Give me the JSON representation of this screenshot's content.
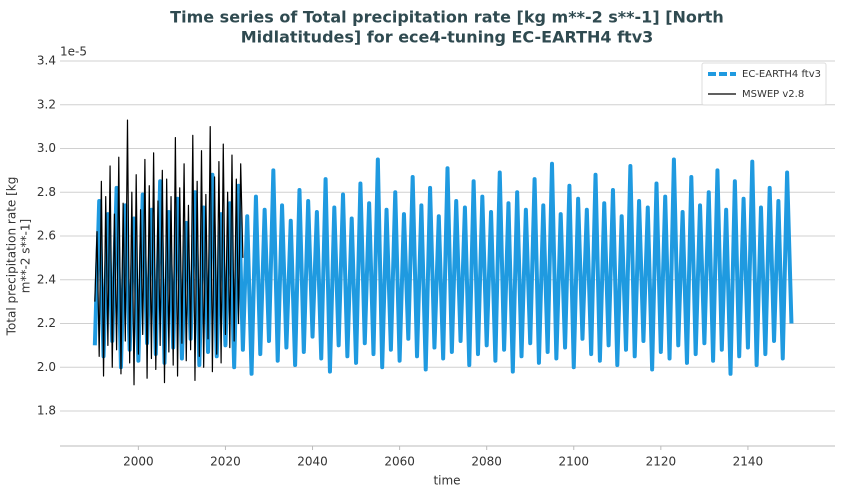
{
  "chart_data": {
    "type": "line",
    "title": [
      "Time series of Total precipitation rate [kg m**-2 s**-1] [North",
      "Midlatitudes] for ece4-tuning EC-EARTH4 ftv3"
    ],
    "xlabel": "time",
    "ylabel": [
      "Total precipitation rate [kg",
      "m**-2 s**-1]"
    ],
    "y_offset_label": "1e-5",
    "xlim": [
      1982,
      2160
    ],
    "xticks": [
      2000,
      2020,
      2040,
      2060,
      2080,
      2100,
      2120,
      2140
    ],
    "ylim": [
      1.64,
      3.4
    ],
    "yticks": [
      1.8,
      {
        "value": 2,
        "label": "2.0"
      },
      2.2,
      2.4,
      2.6,
      2.8,
      {
        "value": 3,
        "label": "3.0"
      },
      3.2,
      3.4
    ],
    "grid": true,
    "legend": "upper right",
    "series": [
      {
        "name": "EC-EARTH4 ftv3",
        "color": "#1f9ae0",
        "style": "dashed",
        "x": [
          1990,
          1991,
          1992,
          1993,
          1994,
          1995,
          1996,
          1997,
          1998,
          1999,
          2000,
          2001,
          2002,
          2003,
          2004,
          2005,
          2006,
          2007,
          2008,
          2009,
          2010,
          2011,
          2012,
          2013,
          2014,
          2015,
          2016,
          2017,
          2018,
          2019,
          2020,
          2021,
          2022,
          2023,
          2024,
          2025,
          2026,
          2027,
          2028,
          2029,
          2030,
          2031,
          2032,
          2033,
          2034,
          2035,
          2036,
          2037,
          2038,
          2039,
          2040,
          2041,
          2042,
          2043,
          2044,
          2045,
          2046,
          2047,
          2048,
          2049,
          2050,
          2051,
          2052,
          2053,
          2054,
          2055,
          2056,
          2057,
          2058,
          2059,
          2060,
          2061,
          2062,
          2063,
          2064,
          2065,
          2066,
          2067,
          2068,
          2069,
          2070,
          2071,
          2072,
          2073,
          2074,
          2075,
          2076,
          2077,
          2078,
          2079,
          2080,
          2081,
          2082,
          2083,
          2084,
          2085,
          2086,
          2087,
          2088,
          2089,
          2090,
          2091,
          2092,
          2093,
          2094,
          2095,
          2096,
          2097,
          2098,
          2099,
          2100,
          2101,
          2102,
          2103,
          2104,
          2105,
          2106,
          2107,
          2108,
          2109,
          2110,
          2111,
          2112,
          2113,
          2114,
          2115,
          2116,
          2117,
          2118,
          2119,
          2120,
          2121,
          2122,
          2123,
          2124,
          2125,
          2126,
          2127,
          2128,
          2129,
          2130,
          2131,
          2132,
          2133,
          2134,
          2135,
          2136,
          2137,
          2138,
          2139,
          2140,
          2141,
          2142,
          2143,
          2144,
          2145,
          2146,
          2147,
          2148,
          2149,
          2150
        ],
        "values": [
          2.1,
          2.76,
          2.05,
          2.7,
          2.12,
          2.82,
          2.0,
          2.74,
          2.08,
          2.68,
          2.03,
          2.79,
          2.11,
          2.72,
          2.06,
          2.85,
          2.02,
          2.71,
          2.09,
          2.77,
          2.04,
          2.66,
          2.13,
          2.8,
          2.01,
          2.73,
          2.07,
          2.88,
          2.05,
          2.7,
          2.1,
          2.75,
          2.0,
          2.83,
          2.08,
          2.69,
          1.97,
          2.78,
          2.06,
          2.72,
          2.12,
          2.9,
          2.03,
          2.74,
          2.09,
          2.67,
          2.01,
          2.81,
          2.07,
          2.76,
          2.14,
          2.71,
          2.04,
          2.86,
          1.98,
          2.73,
          2.1,
          2.79,
          2.05,
          2.68,
          2.02,
          2.84,
          2.11,
          2.75,
          2.06,
          2.95,
          2.0,
          2.72,
          2.08,
          2.8,
          2.03,
          2.7,
          2.13,
          2.87,
          2.05,
          2.74,
          1.99,
          2.82,
          2.09,
          2.69,
          2.04,
          2.91,
          2.07,
          2.76,
          2.12,
          2.73,
          2.01,
          2.85,
          2.06,
          2.78,
          2.1,
          2.71,
          2.03,
          2.89,
          2.08,
          2.75,
          1.98,
          2.8,
          2.05,
          2.72,
          2.11,
          2.86,
          2.02,
          2.74,
          2.07,
          2.93,
          2.04,
          2.7,
          2.09,
          2.83,
          2.0,
          2.77,
          2.13,
          2.72,
          2.06,
          2.88,
          2.03,
          2.75,
          2.1,
          2.81,
          2.01,
          2.69,
          2.08,
          2.92,
          2.05,
          2.76,
          2.12,
          2.73,
          1.99,
          2.84,
          2.07,
          2.78,
          2.04,
          2.95,
          2.1,
          2.71,
          2.02,
          2.87,
          2.06,
          2.74,
          2.11,
          2.8,
          2.03,
          2.9,
          2.08,
          2.72,
          1.97,
          2.85,
          2.05,
          2.77,
          2.09,
          2.94,
          2.01,
          2.73,
          2.06,
          2.82,
          2.12,
          2.76,
          2.04,
          2.89,
          2.2
        ]
      },
      {
        "name": "MSWEP v2.8",
        "color": "#000000",
        "style": "solid",
        "x": [
          1990,
          1990.5,
          1991,
          1991.5,
          1992,
          1992.5,
          1993,
          1993.5,
          1994,
          1994.5,
          1995,
          1995.5,
          1996,
          1996.5,
          1997,
          1997.5,
          1998,
          1998.5,
          1999,
          1999.5,
          2000,
          2000.5,
          2001,
          2001.5,
          2002,
          2002.5,
          2003,
          2003.5,
          2004,
          2004.5,
          2005,
          2005.5,
          2006,
          2006.5,
          2007,
          2007.5,
          2008,
          2008.5,
          2009,
          2009.5,
          2010,
          2010.5,
          2011,
          2011.5,
          2012,
          2012.5,
          2013,
          2013.5,
          2014,
          2014.5,
          2015,
          2015.5,
          2016,
          2016.5,
          2017,
          2017.5,
          2018,
          2018.5,
          2019,
          2019.5,
          2020,
          2020.5,
          2021,
          2021.5,
          2022,
          2022.5,
          2023,
          2023.5,
          2024
        ],
        "values": [
          2.3,
          2.62,
          2.05,
          2.85,
          1.96,
          2.78,
          2.1,
          2.92,
          2.0,
          2.7,
          2.08,
          2.96,
          1.97,
          2.75,
          2.12,
          3.13,
          2.02,
          2.8,
          1.92,
          2.88,
          2.06,
          2.72,
          2.15,
          2.95,
          1.95,
          2.83,
          2.04,
          2.98,
          1.99,
          2.76,
          2.1,
          2.9,
          1.93,
          2.86,
          2.07,
          2.78,
          2.01,
          3.05,
          1.96,
          2.82,
          2.11,
          2.93,
          2.03,
          2.74,
          2.08,
          3.06,
          1.94,
          2.85,
          2.05,
          2.99,
          2.0,
          2.79,
          2.13,
          3.1,
          1.98,
          2.87,
          2.06,
          2.94,
          2.02,
          3.02,
          2.15,
          2.8,
          2.09,
          2.97,
          2.12,
          2.86,
          2.2,
          2.93,
          2.5
        ]
      }
    ]
  }
}
